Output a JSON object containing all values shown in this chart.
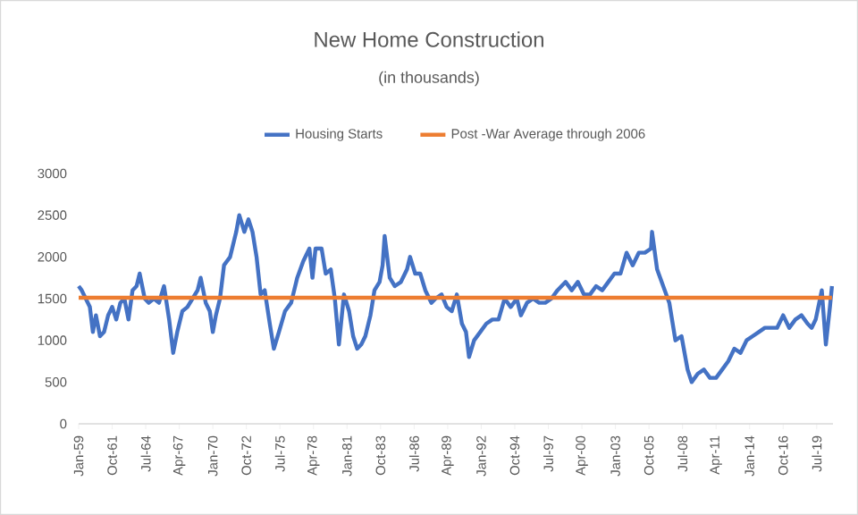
{
  "chart_data": {
    "type": "line",
    "title": "New Home Construction",
    "subtitle": "(in thousands)",
    "xlim": [
      "1959-01",
      "2020-11"
    ],
    "xticks": [
      {
        "value": "1959-01",
        "label": "Jan-59"
      },
      {
        "value": "1961-10",
        "label": "Oct-61"
      },
      {
        "value": "1964-07",
        "label": "Jul-64"
      },
      {
        "value": "1967-04",
        "label": "Apr-67"
      },
      {
        "value": "1970-01",
        "label": "Jan-70"
      },
      {
        "value": "1972-10",
        "label": "Oct-72"
      },
      {
        "value": "1975-07",
        "label": "Jul-75"
      },
      {
        "value": "1978-04",
        "label": "Apr-78"
      },
      {
        "value": "1981-01",
        "label": "Jan-81"
      },
      {
        "value": "1983-10",
        "label": "Oct-83"
      },
      {
        "value": "1986-07",
        "label": "Jul-86"
      },
      {
        "value": "1989-04",
        "label": "Apr-89"
      },
      {
        "value": "1992-01",
        "label": "Jan-92"
      },
      {
        "value": "1994-10",
        "label": "Oct-94"
      },
      {
        "value": "1997-07",
        "label": "Jul-97"
      },
      {
        "value": "2000-04",
        "label": "Apr-00"
      },
      {
        "value": "2003-01",
        "label": "Jan-03"
      },
      {
        "value": "2005-10",
        "label": "Oct-05"
      },
      {
        "value": "2008-07",
        "label": "Jul-08"
      },
      {
        "value": "2011-04",
        "label": "Apr-11"
      },
      {
        "value": "2014-01",
        "label": "Jan-14"
      },
      {
        "value": "2016-10",
        "label": "Oct-16"
      },
      {
        "value": "2019-07",
        "label": "Jul-19"
      }
    ],
    "ylim": [
      0,
      3000
    ],
    "yticks": [
      0,
      500,
      1000,
      1500,
      2000,
      2500,
      3000
    ],
    "legend": "top",
    "marker": "none",
    "line_style": "solid",
    "series": [
      {
        "name": "Housing Starts",
        "color": "#4472c4",
        "x": [
          "1959-01",
          "1959-04",
          "1959-08",
          "1959-12",
          "1960-03",
          "1960-06",
          "1960-10",
          "1961-02",
          "1961-06",
          "1961-10",
          "1962-02",
          "1962-06",
          "1962-10",
          "1963-02",
          "1963-06",
          "1963-10",
          "1964-01",
          "1964-06",
          "1964-10",
          "1965-03",
          "1965-08",
          "1966-01",
          "1966-06",
          "1966-10",
          "1967-02",
          "1967-07",
          "1967-12",
          "1968-05",
          "1968-10",
          "1969-01",
          "1969-06",
          "1969-10",
          "1970-01",
          "1970-04",
          "1970-08",
          "1970-12",
          "1971-06",
          "1971-12",
          "1972-03",
          "1972-08",
          "1972-12",
          "1973-04",
          "1973-08",
          "1973-12",
          "1974-04",
          "1974-09",
          "1975-01",
          "1975-06",
          "1975-12",
          "1976-06",
          "1976-12",
          "1977-06",
          "1977-12",
          "1978-03",
          "1978-06",
          "1978-12",
          "1979-04",
          "1979-09",
          "1980-01",
          "1980-05",
          "1980-10",
          "1981-03",
          "1981-07",
          "1981-11",
          "1982-03",
          "1982-07",
          "1982-12",
          "1983-04",
          "1983-09",
          "1983-12",
          "1984-02",
          "1984-07",
          "1984-12",
          "1985-06",
          "1985-12",
          "1986-03",
          "1986-08",
          "1987-01",
          "1987-06",
          "1987-12",
          "1988-04",
          "1988-10",
          "1989-03",
          "1989-08",
          "1990-01",
          "1990-06",
          "1990-10",
          "1991-01",
          "1991-06",
          "1991-12",
          "1992-06",
          "1992-12",
          "1993-06",
          "1993-12",
          "1994-06",
          "1994-12",
          "1995-04",
          "1995-10",
          "1996-04",
          "1996-10",
          "1997-04",
          "1997-10",
          "1998-04",
          "1998-12",
          "1999-06",
          "1999-12",
          "2000-06",
          "2000-12",
          "2001-06",
          "2001-12",
          "2002-06",
          "2002-12",
          "2003-06",
          "2003-12",
          "2004-06",
          "2004-12",
          "2005-06",
          "2005-12",
          "2006-01",
          "2006-06",
          "2006-12",
          "2007-06",
          "2007-12",
          "2008-06",
          "2008-12",
          "2009-04",
          "2009-10",
          "2010-04",
          "2010-10",
          "2011-04",
          "2011-10",
          "2012-04",
          "2012-10",
          "2013-04",
          "2013-10",
          "2014-04",
          "2014-10",
          "2015-04",
          "2015-10",
          "2016-04",
          "2016-10",
          "2017-04",
          "2017-10",
          "2018-04",
          "2018-10",
          "2019-02",
          "2019-06",
          "2019-12",
          "2020-04",
          "2020-08",
          "2020-10"
        ],
        "values": [
          1650,
          1600,
          1500,
          1400,
          1100,
          1300,
          1050,
          1100,
          1300,
          1400,
          1250,
          1450,
          1500,
          1250,
          1600,
          1650,
          1800,
          1500,
          1450,
          1500,
          1450,
          1650,
          1250,
          850,
          1100,
          1350,
          1400,
          1500,
          1600,
          1750,
          1450,
          1350,
          1100,
          1300,
          1500,
          1900,
          2000,
          2300,
          2500,
          2300,
          2450,
          2300,
          2000,
          1550,
          1600,
          1200,
          900,
          1100,
          1350,
          1450,
          1750,
          1950,
          2100,
          1750,
          2100,
          2100,
          1800,
          1850,
          1500,
          950,
          1550,
          1350,
          1050,
          900,
          950,
          1050,
          1300,
          1600,
          1700,
          1900,
          2250,
          1750,
          1650,
          1700,
          1850,
          2000,
          1800,
          1800,
          1600,
          1450,
          1500,
          1550,
          1400,
          1350,
          1550,
          1200,
          1100,
          800,
          1000,
          1100,
          1200,
          1250,
          1250,
          1500,
          1400,
          1500,
          1300,
          1450,
          1500,
          1450,
          1450,
          1500,
          1600,
          1700,
          1600,
          1700,
          1550,
          1550,
          1650,
          1600,
          1700,
          1800,
          1800,
          2050,
          1900,
          2050,
          2050,
          2100,
          2300,
          1850,
          1650,
          1450,
          1000,
          1050,
          650,
          500,
          600,
          650,
          550,
          550,
          650,
          750,
          900,
          850,
          1000,
          1050,
          1100,
          1150,
          1150,
          1150,
          1300,
          1150,
          1250,
          1300,
          1200,
          1150,
          1250,
          1600,
          950,
          1400,
          1650
        ]
      },
      {
        "name": "Post -War Average through 2006",
        "color": "#ed7d31",
        "x": [
          "1959-01",
          "2020-10"
        ],
        "values": [
          1510,
          1510
        ]
      }
    ]
  }
}
